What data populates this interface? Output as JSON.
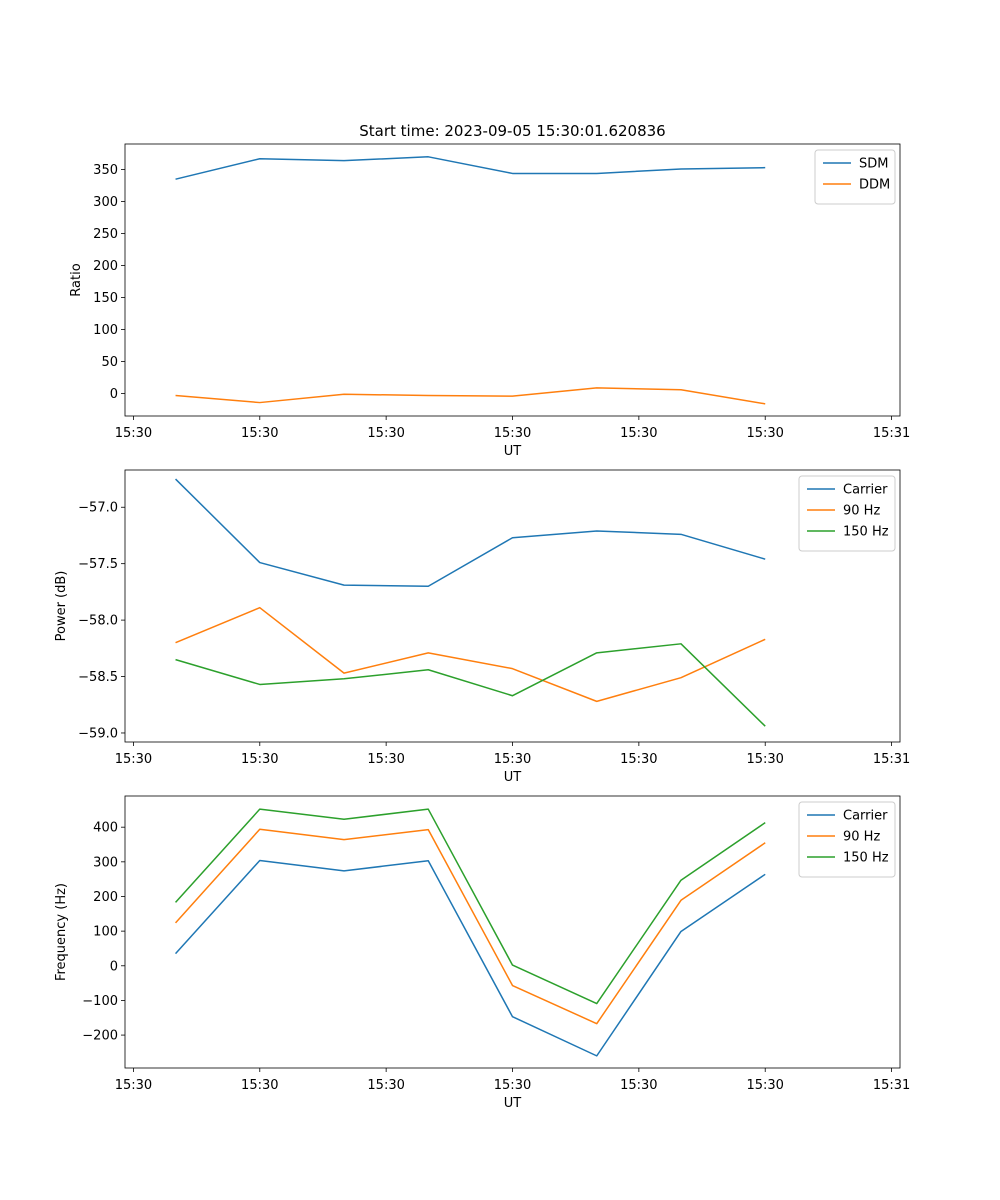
{
  "figure": {
    "title": "Start time: 2023-09-05 15:30:01.620836"
  },
  "chart_data": [
    {
      "type": "line",
      "xlabel": "UT",
      "ylabel": "Ratio",
      "ylim": [
        -35,
        390
      ],
      "yticks": [
        0,
        50,
        100,
        150,
        200,
        250,
        300,
        350
      ],
      "xlim": [
        -0.6,
        8.6
      ],
      "x": [
        0,
        1,
        2,
        3,
        4,
        5,
        6,
        7
      ],
      "xticks": [
        -0.5,
        1,
        2.5,
        4,
        5.5,
        7,
        8.5
      ],
      "xticklabels": [
        "15:30",
        "15:30",
        "15:30",
        "15:30",
        "15:30",
        "15:30",
        "15:31"
      ],
      "legend": "top-right",
      "series": [
        {
          "name": "SDM",
          "color": "#1f77b4",
          "values": [
            335,
            367,
            364,
            370,
            344,
            344,
            351,
            353
          ]
        },
        {
          "name": "DDM",
          "color": "#ff7f0e",
          "values": [
            -3,
            -14,
            -1,
            -3,
            -4,
            9,
            6,
            -16
          ]
        }
      ]
    },
    {
      "type": "line",
      "xlabel": "UT",
      "ylabel": "Power (dB)",
      "ylim": [
        -59.08,
        -56.67
      ],
      "yticks": [
        -59.0,
        -58.5,
        -58.0,
        -57.5,
        -57.0
      ],
      "yticklabels": [
        "−59.0",
        "−58.5",
        "−58.0",
        "−57.5",
        "−57.0"
      ],
      "xlim": [
        -0.6,
        8.6
      ],
      "x": [
        0,
        1,
        2,
        3,
        4,
        5,
        6,
        7
      ],
      "xticks": [
        -0.5,
        1,
        2.5,
        4,
        5.5,
        7,
        8.5
      ],
      "xticklabels": [
        "15:30",
        "15:30",
        "15:30",
        "15:30",
        "15:30",
        "15:30",
        "15:31"
      ],
      "legend": "top-right",
      "series": [
        {
          "name": "Carrier",
          "color": "#1f77b4",
          "values": [
            -56.75,
            -57.49,
            -57.69,
            -57.7,
            -57.27,
            -57.21,
            -57.24,
            -57.46
          ]
        },
        {
          "name": "90 Hz",
          "color": "#ff7f0e",
          "values": [
            -58.2,
            -57.89,
            -58.47,
            -58.29,
            -58.43,
            -58.72,
            -58.51,
            -58.17
          ]
        },
        {
          "name": "150 Hz",
          "color": "#2ca02c",
          "values": [
            -58.35,
            -58.57,
            -58.52,
            -58.44,
            -58.67,
            -58.29,
            -58.21,
            -58.94
          ]
        }
      ]
    },
    {
      "type": "line",
      "xlabel": "UT",
      "ylabel": "Frequency (Hz)",
      "ylim": [
        -295,
        490
      ],
      "yticks": [
        -200,
        -100,
        0,
        100,
        200,
        300,
        400
      ],
      "yticklabels": [
        "−200",
        "−100",
        "0",
        "100",
        "200",
        "300",
        "400"
      ],
      "xlim": [
        -0.6,
        8.6
      ],
      "x": [
        0,
        1,
        2,
        3,
        4,
        5,
        6,
        7
      ],
      "xticks": [
        -0.5,
        1,
        2.5,
        4,
        5.5,
        7,
        8.5
      ],
      "xticklabels": [
        "15:30",
        "15:30",
        "15:30",
        "15:30",
        "15:30",
        "15:30",
        "15:31"
      ],
      "legend": "top-right",
      "series": [
        {
          "name": "Carrier",
          "color": "#1f77b4",
          "values": [
            35,
            304,
            274,
            303,
            -147,
            -260,
            99,
            264
          ]
        },
        {
          "name": "90 Hz",
          "color": "#ff7f0e",
          "values": [
            124,
            394,
            364,
            393,
            -57,
            -167,
            189,
            355
          ]
        },
        {
          "name": "150 Hz",
          "color": "#2ca02c",
          "values": [
            183,
            452,
            423,
            452,
            2,
            -109,
            247,
            413
          ]
        }
      ]
    }
  ]
}
